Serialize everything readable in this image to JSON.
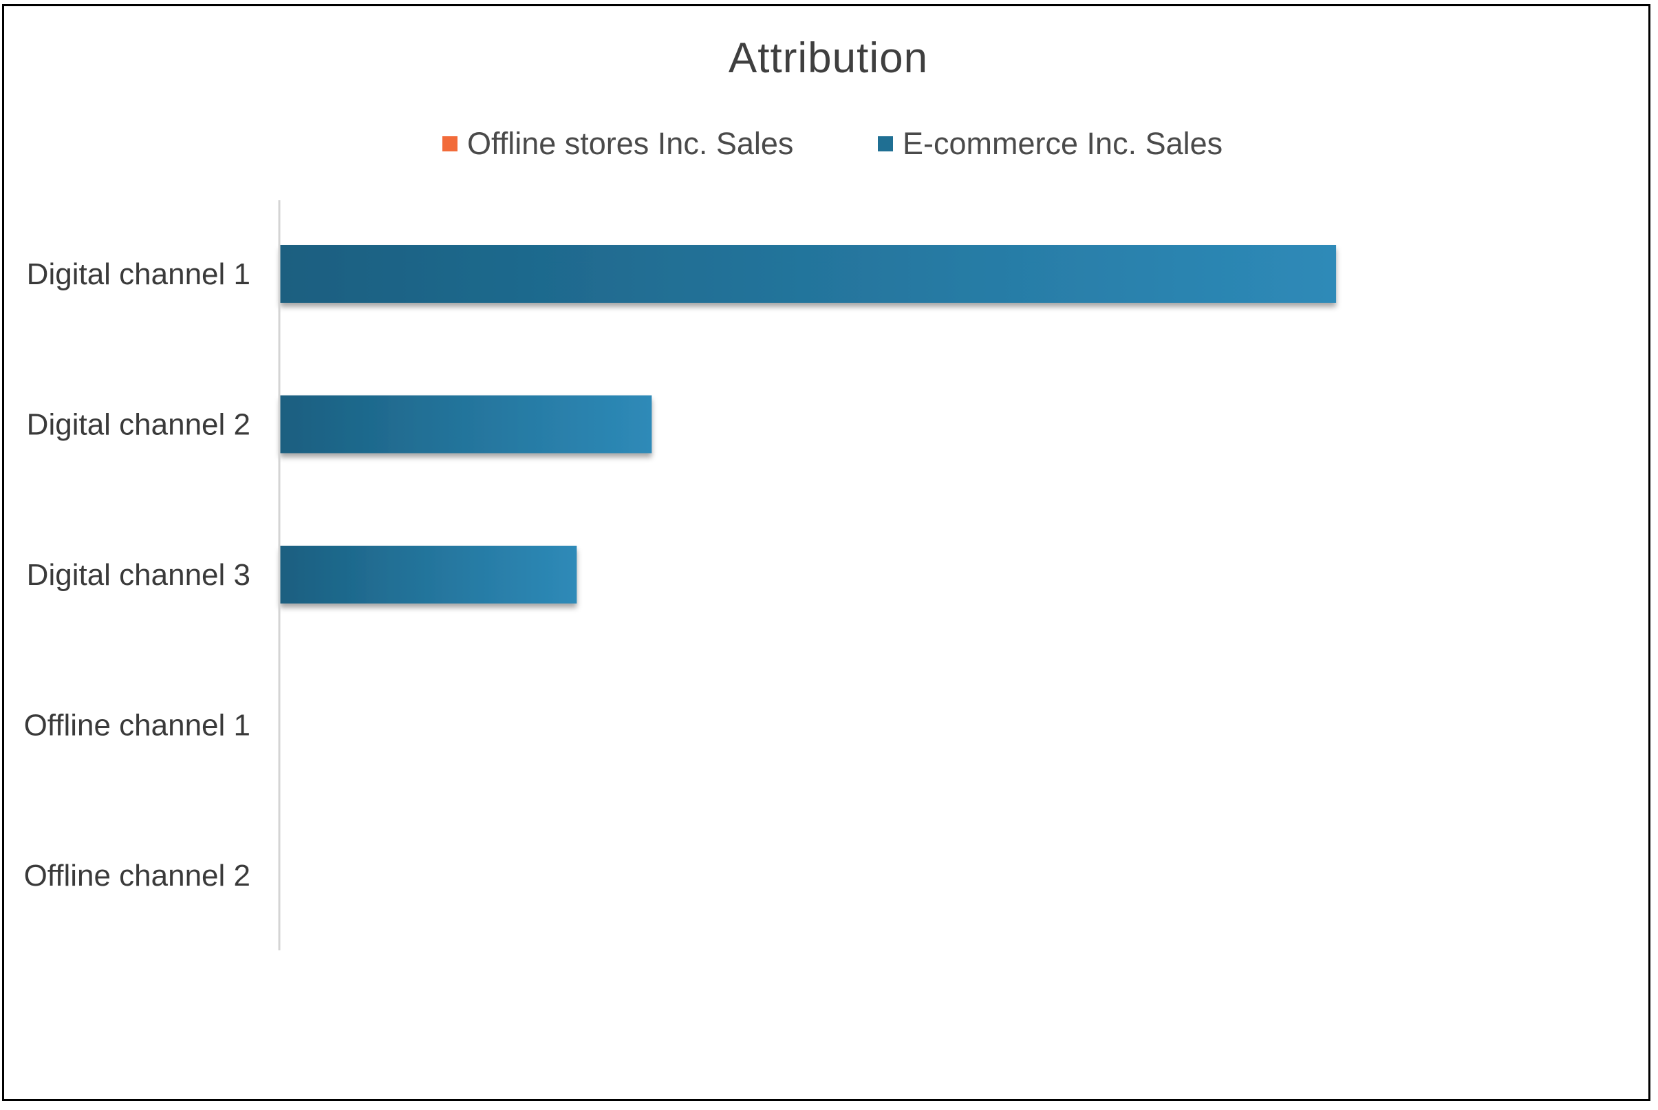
{
  "chart_data": {
    "type": "bar",
    "orientation": "horizontal",
    "title": "Attribution",
    "categories": [
      "Digital channel 1",
      "Digital channel 2",
      "Digital channel 3",
      "Offline channel 1",
      "Offline channel 2"
    ],
    "series": [
      {
        "name": "Offline stores Inc. Sales",
        "color": "#f26b3a",
        "values": [
          0,
          0,
          0,
          0,
          0
        ]
      },
      {
        "name": "E-commerce Inc. Sales",
        "color": "#1f6f93",
        "values": [
          100,
          35.2,
          28.1,
          0,
          0
        ]
      }
    ],
    "xlim": [
      0,
      114
    ],
    "grid": false,
    "legend_position": "top",
    "xlabel": "",
    "ylabel": ""
  }
}
